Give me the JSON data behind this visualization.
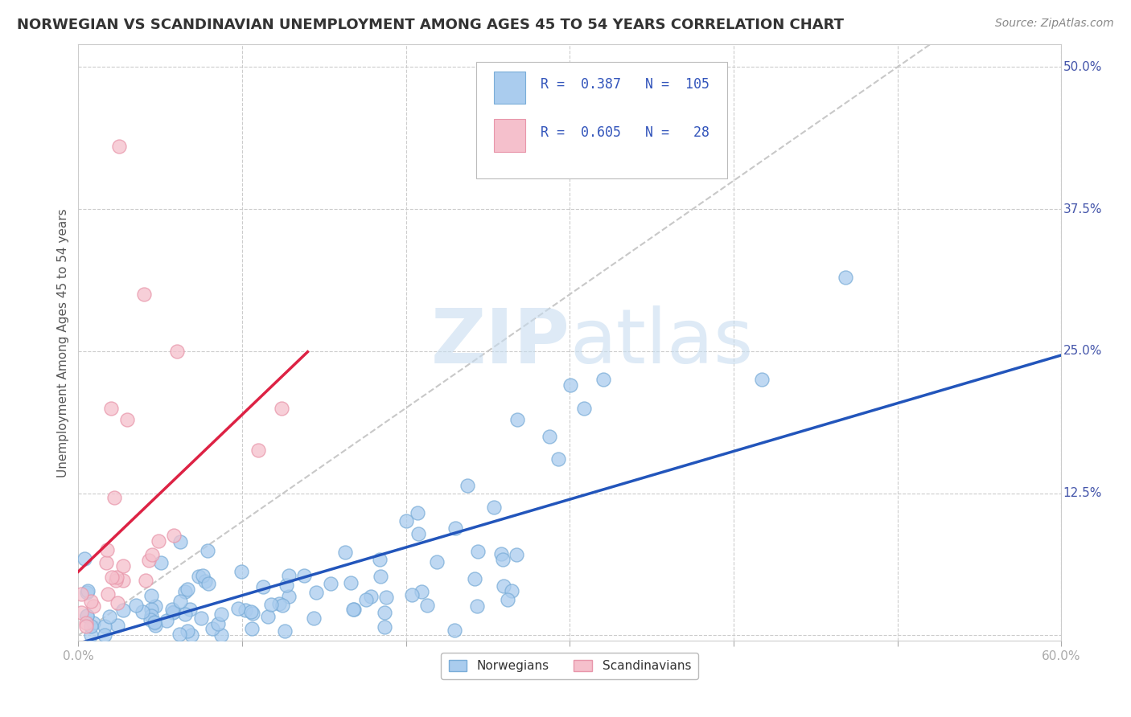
{
  "title": "NORWEGIAN VS SCANDINAVIAN UNEMPLOYMENT AMONG AGES 45 TO 54 YEARS CORRELATION CHART",
  "source": "Source: ZipAtlas.com",
  "ylabel": "Unemployment Among Ages 45 to 54 years",
  "xlim": [
    0.0,
    0.6
  ],
  "ylim": [
    -0.005,
    0.52
  ],
  "xtick_positions": [
    0.0,
    0.1,
    0.2,
    0.3,
    0.4,
    0.5,
    0.6
  ],
  "xtick_labels": [
    "0.0%",
    "",
    "",
    "",
    "",
    "",
    "60.0%"
  ],
  "ytick_positions": [
    0.0,
    0.125,
    0.25,
    0.375,
    0.5
  ],
  "ytick_labels": [
    "",
    "12.5%",
    "25.0%",
    "37.5%",
    "50.0%"
  ],
  "grid_color": "#cccccc",
  "background_color": "#ffffff",
  "blue_fill": "#aaccee",
  "blue_edge": "#7aadd8",
  "pink_fill": "#f5c0cc",
  "pink_edge": "#e896aa",
  "blue_line_color": "#2255BB",
  "pink_line_color": "#DD2244",
  "ref_line_color": "#c8c8c8",
  "legend_R1": "0.387",
  "legend_N1": "105",
  "legend_R2": "0.605",
  "legend_N2": "28",
  "norwegian_label": "Norwegians",
  "scandinavian_label": "Scandinavians",
  "watermark_zip": "ZIP",
  "watermark_atlas": "atlas",
  "title_fontsize": 13,
  "source_fontsize": 10,
  "ylabel_fontsize": 11,
  "tick_fontsize": 11,
  "legend_fontsize": 12
}
